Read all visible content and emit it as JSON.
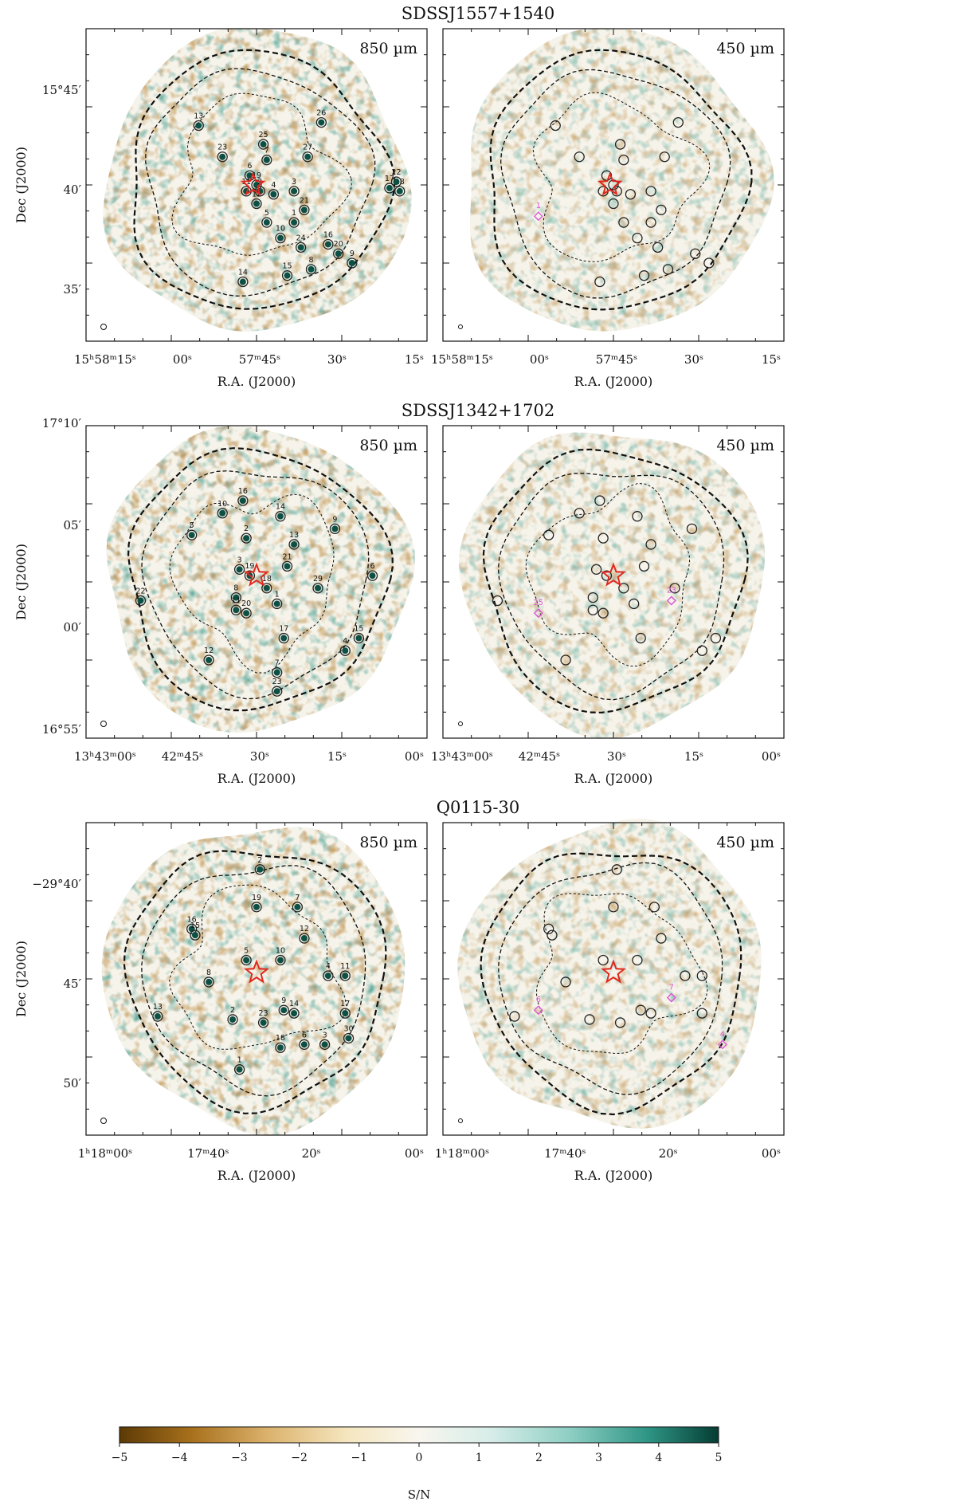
{
  "figure": {
    "colorbar": {
      "ticks": [
        "−5",
        "−4",
        "−3",
        "−2",
        "−1",
        "0",
        "1",
        "2",
        "3",
        "4",
        "5"
      ],
      "label": "S/N",
      "range": [
        -5,
        5
      ],
      "colors": [
        "#5c3a05",
        "#a8701c",
        "#dcb36e",
        "#f5e6bf",
        "#f8f6ee",
        "#d7ede9",
        "#8fcfc4",
        "#3aa393",
        "#0f6f60",
        "#053d33"
      ]
    },
    "axis_xlabel": "R.A. (J2000)",
    "axis_ylabel": "Dec (J2000)",
    "rows": [
      {
        "title": "SDSSJ1557+1540",
        "dec_ticks": [
          "15°45′",
          "40′",
          "35′"
        ],
        "ra_ticks": [
          "15ʰ58ᵐ15ˢ",
          "00ˢ",
          "57ᵐ45ˢ",
          "30ˢ",
          "15ˢ"
        ],
        "panels": [
          {
            "band": "850 µm",
            "labels": [
              "13",
              "25",
              "26",
              "23",
              "7",
              "27",
              "6",
              "19",
              "11",
              "2",
              "4",
              "3",
              "12",
              "21",
              "5",
              "1",
              "10",
              "24",
              "20",
              "9",
              "14",
              "15",
              "8",
              "17",
              "18",
              "22",
              "16"
            ]
          },
          {
            "band": "450 µm",
            "labels": [
              "1"
            ]
          }
        ]
      },
      {
        "title": "SDSSJ1342+1702",
        "dec_ticks": [
          "17°10′",
          "05′",
          "00′",
          "16°55′"
        ],
        "ra_ticks": [
          "13ʰ43ᵐ00ˢ",
          "42ᵐ45ˢ",
          "30ˢ",
          "15ˢ",
          "00ˢ"
        ],
        "panels": [
          {
            "band": "850 µm",
            "labels": [
              "16",
              "10",
              "14",
              "5",
              "2",
              "9",
              "13",
              "3",
              "19",
              "21",
              "18",
              "29",
              "22",
              "8",
              "11",
              "20",
              "1",
              "17",
              "4",
              "15",
              "12",
              "7",
              "23",
              "6"
            ]
          },
          {
            "band": "450 µm",
            "labels": [
              "25",
              "23"
            ]
          }
        ]
      },
      {
        "title": "Q0115-30",
        "dec_ticks": [
          "−29°40′",
          "45′",
          "50′"
        ],
        "ra_ticks": [
          "1ʰ18ᵐ00ˢ",
          "17ᵐ40ˢ",
          "20ˢ",
          "00ˢ"
        ],
        "panels": [
          {
            "band": "850 µm",
            "labels": [
              "2",
              "19",
              "7",
              "16",
              "15",
              "12",
              "5",
              "10",
              "4",
              "11",
              "8",
              "13",
              "2",
              "23",
              "9",
              "14",
              "17",
              "18",
              "6",
              "30",
              "1",
              "3"
            ]
          },
          {
            "band": "450 µm",
            "labels": [
              "6",
              "7",
              "4"
            ]
          }
        ]
      }
    ]
  }
}
